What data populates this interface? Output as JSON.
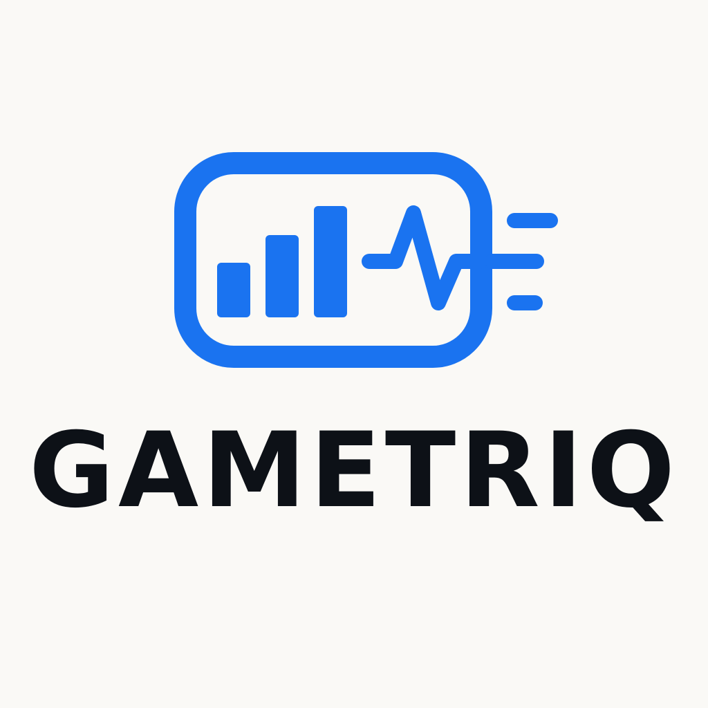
{
  "brand": {
    "name": "GAMETRIQ",
    "accent_color": "#1a73f0",
    "text_color": "#0d1117",
    "background_color": "#faf9f6"
  },
  "logo": {
    "icon": "analytics-monitor-icon",
    "parts": [
      "rounded-frame",
      "bar-chart",
      "pulse-line",
      "speed-lines"
    ]
  }
}
